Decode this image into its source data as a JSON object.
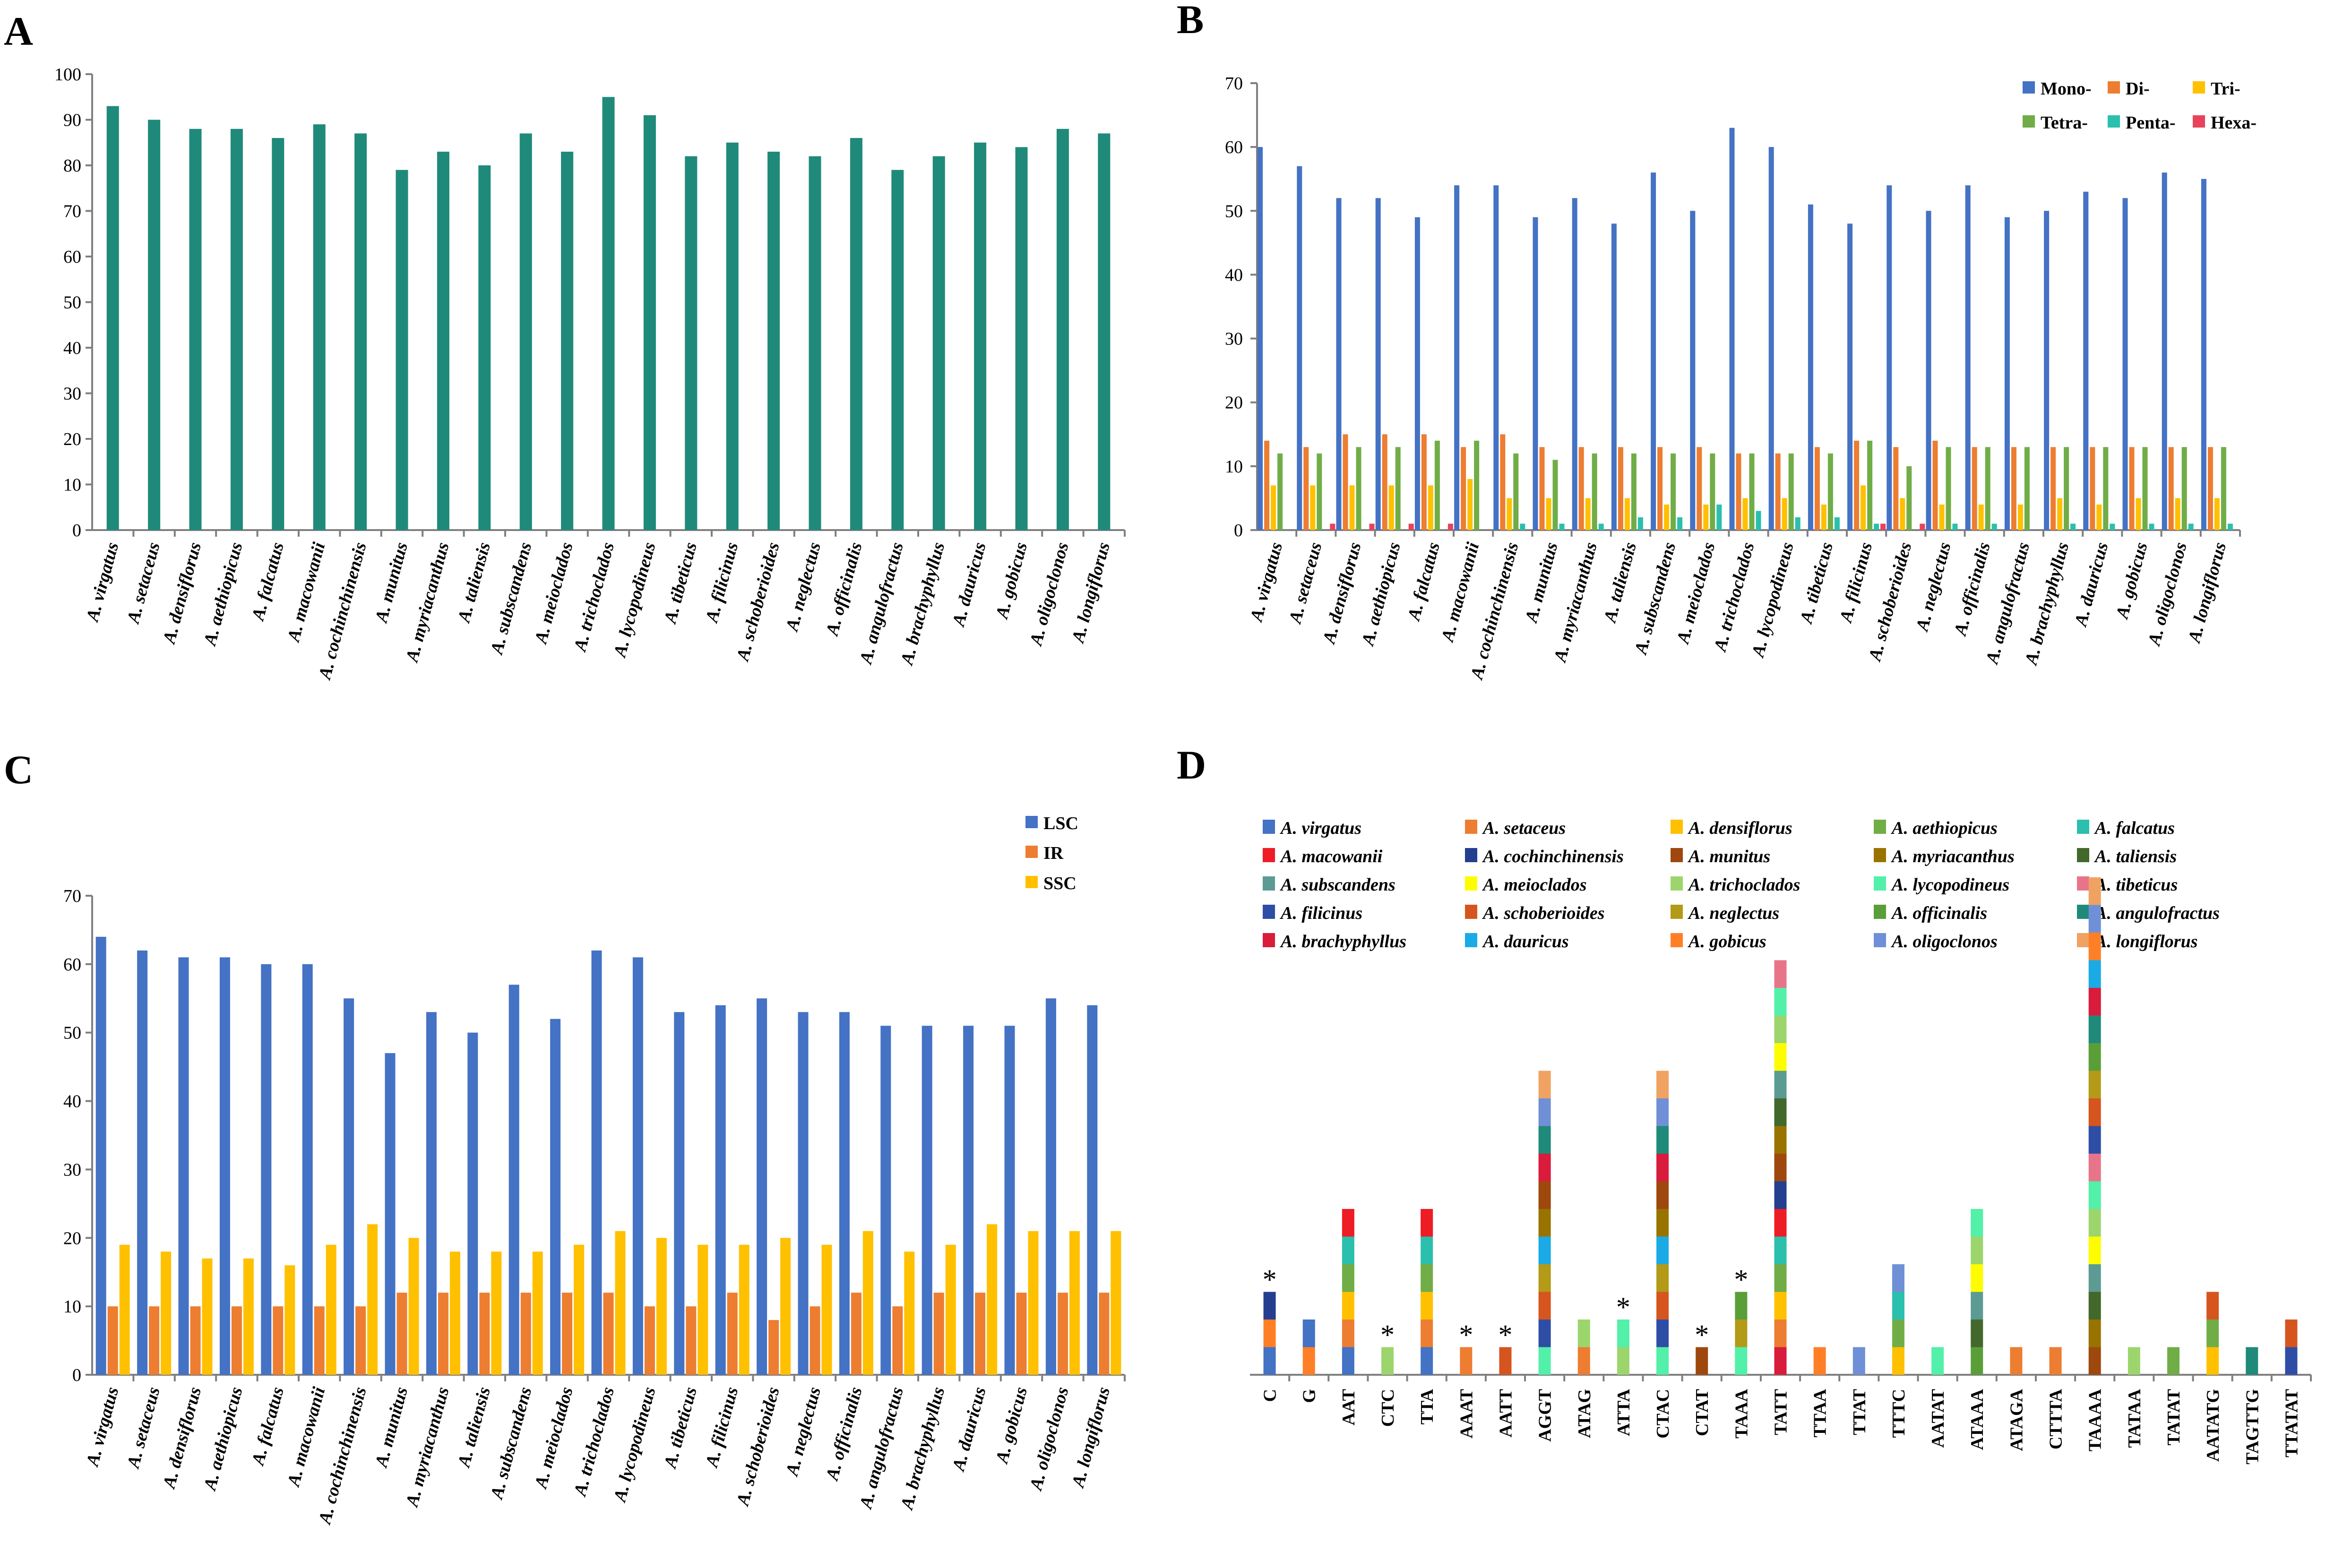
{
  "species": [
    "A. virgatus",
    "A. setaceus",
    "A. densiflorus",
    "A. aethiopicus",
    "A. falcatus",
    "A. macowanii",
    "A. cochinchinensis",
    "A. munitus",
    "A. myriacanthus",
    "A. taliensis",
    "A. subscandens",
    "A. meioclados",
    "A. trichoclados",
    "A. lycopodineus",
    "A. tibeticus",
    "A. filicinus",
    "A. schoberioides",
    "A. neglectus",
    "A. officinalis",
    "A. angulofractus",
    "A. brachyphyllus",
    "A. dauricus",
    "A. gobicus",
    "A. oligoclonos",
    "A. longiflorus"
  ],
  "chart_data": [
    {
      "panel": "A",
      "type": "bar",
      "categories": [
        "A. virgatus",
        "A. setaceus",
        "A. densiflorus",
        "A. aethiopicus",
        "A. falcatus",
        "A. macowanii",
        "A. cochinchinensis",
        "A. munitus",
        "A. myriacanthus",
        "A. taliensis",
        "A. subscandens",
        "A. meioclados",
        "A. trichoclados",
        "A. lycopodineus",
        "A. tibeticus",
        "A. filicinus",
        "A. schoberioides",
        "A. neglectus",
        "A. officinalis",
        "A. angulofractus",
        "A. brachyphyllus",
        "A. dauricus",
        "A. gobicus",
        "A. oligoclonos",
        "A. longiflorus"
      ],
      "series": [
        {
          "name": "",
          "color": "#1f8a7a",
          "values": [
            93,
            90,
            88,
            88,
            86,
            89,
            87,
            79,
            83,
            80,
            87,
            83,
            95,
            91,
            82,
            85,
            83,
            82,
            86,
            79,
            82,
            85,
            84,
            88,
            87
          ]
        }
      ],
      "ylim": [
        0,
        100
      ],
      "yticks": [
        0,
        10,
        20,
        30,
        40,
        50,
        60,
        70,
        80,
        90,
        100
      ],
      "legend": "none"
    },
    {
      "panel": "B",
      "type": "bar",
      "categories": [
        "A. virgatus",
        "A. setaceus",
        "A. densiflorus",
        "A. aethiopicus",
        "A. falcatus",
        "A. macowanii",
        "A. cochinchinensis",
        "A. munitus",
        "A. myriacanthus",
        "A. taliensis",
        "A. subscandens",
        "A. meioclados",
        "A. trichoclados",
        "A. lycopodineus",
        "A. tibeticus",
        "A. filicinus",
        "A. schoberioides",
        "A. neglectus",
        "A. officinalis",
        "A. angulofractus",
        "A. brachyphyllus",
        "A. dauricus",
        "A. gobicus",
        "A. oligoclonos",
        "A. longiflorus"
      ],
      "series": [
        {
          "name": "Mono-",
          "color": "#4472c4",
          "values": [
            60,
            57,
            52,
            52,
            49,
            54,
            54,
            49,
            52,
            48,
            56,
            50,
            63,
            60,
            51,
            48,
            54,
            50,
            54,
            49,
            50,
            53,
            52,
            56,
            55
          ]
        },
        {
          "name": "Di-",
          "color": "#ed7d31",
          "values": [
            14,
            13,
            15,
            15,
            15,
            13,
            15,
            13,
            13,
            13,
            13,
            13,
            12,
            12,
            13,
            14,
            13,
            14,
            13,
            13,
            13,
            13,
            13,
            13,
            13
          ]
        },
        {
          "name": "Tri-",
          "color": "#ffc000",
          "values": [
            7,
            7,
            7,
            7,
            7,
            8,
            5,
            5,
            5,
            5,
            4,
            4,
            5,
            5,
            4,
            7,
            5,
            4,
            4,
            4,
            5,
            4,
            5,
            5,
            5
          ]
        },
        {
          "name": "Tetra-",
          "color": "#70ad47",
          "values": [
            12,
            12,
            13,
            13,
            14,
            14,
            12,
            11,
            12,
            12,
            12,
            12,
            12,
            12,
            12,
            14,
            10,
            13,
            13,
            13,
            13,
            13,
            13,
            13,
            13
          ]
        },
        {
          "name": "Penta-",
          "color": "#2bbfad",
          "values": [
            0,
            0,
            0,
            0,
            0,
            0,
            1,
            1,
            1,
            2,
            2,
            4,
            3,
            2,
            2,
            1,
            0,
            1,
            1,
            0,
            1,
            1,
            1,
            1,
            1
          ]
        },
        {
          "name": "Hexa-",
          "color": "#e8435a",
          "values": [
            0,
            1,
            1,
            1,
            1,
            0,
            0,
            0,
            0,
            0,
            0,
            0,
            0,
            0,
            0,
            1,
            1,
            0,
            0,
            0,
            0,
            0,
            0,
            0,
            0
          ]
        }
      ],
      "ylim": [
        0,
        70
      ],
      "yticks": [
        0,
        10,
        20,
        30,
        40,
        50,
        60,
        70
      ],
      "legend": "top-right"
    },
    {
      "panel": "C",
      "type": "bar",
      "categories": [
        "A. virgatus",
        "A. setaceus",
        "A. densiflorus",
        "A. aethiopicus",
        "A. falcatus",
        "A. macowanii",
        "A. cochinchinensis",
        "A. munitus",
        "A. myriacanthus",
        "A. taliensis",
        "A. subscandens",
        "A. meioclados",
        "A. trichoclados",
        "A. lycopodineus",
        "A. tibeticus",
        "A. filicinus",
        "A. schoberioides",
        "A. neglectus",
        "A. officinalis",
        "A. angulofractus",
        "A. brachyphyllus",
        "A. dauricus",
        "A. gobicus",
        "A. oligoclonos",
        "A. longiflorus"
      ],
      "series": [
        {
          "name": "LSC",
          "color": "#4472c4",
          "values": [
            64,
            62,
            61,
            61,
            60,
            60,
            55,
            47,
            53,
            50,
            57,
            52,
            62,
            61,
            53,
            54,
            55,
            53,
            53,
            51,
            51,
            51,
            51,
            55,
            54
          ]
        },
        {
          "name": "IR",
          "color": "#ed7d31",
          "values": [
            10,
            10,
            10,
            10,
            10,
            10,
            10,
            12,
            12,
            12,
            12,
            12,
            12,
            10,
            10,
            12,
            8,
            10,
            12,
            10,
            12,
            12,
            12,
            12,
            12
          ]
        },
        {
          "name": "SSC",
          "color": "#ffc000",
          "values": [
            19,
            18,
            17,
            17,
            16,
            19,
            22,
            20,
            18,
            18,
            18,
            19,
            21,
            20,
            19,
            19,
            20,
            19,
            21,
            18,
            19,
            22,
            21,
            21,
            21
          ]
        }
      ],
      "ylim": [
        0,
        70
      ],
      "yticks": [
        0,
        10,
        20,
        30,
        40,
        50,
        60,
        70
      ],
      "legend": "top-right"
    },
    {
      "panel": "D",
      "type": "bar",
      "stacked": true,
      "categories": [
        "C",
        "G",
        "AAT",
        "CTC",
        "TTA",
        "AAAT",
        "AATT",
        "AGGT",
        "ATAG",
        "ATTA",
        "CTAC",
        "CTAT",
        "TAAA",
        "TATT",
        "TTAA",
        "TTAT",
        "TTTC",
        "AATAT",
        "ATAAA",
        "ATAGA",
        "CTTTA",
        "TAAAA",
        "TATAA",
        "TATAT",
        "AATATG",
        "TAGTTG",
        "TTATAT"
      ],
      "stacks": [
        [
          0,
          22,
          6
        ],
        [
          22,
          0
        ],
        [
          0,
          1,
          2,
          3,
          4,
          5
        ],
        [
          12
        ],
        [
          0,
          1,
          2,
          3,
          4,
          5
        ],
        [
          1
        ],
        [
          16
        ],
        [
          13,
          15,
          16,
          17,
          21,
          8,
          7,
          20,
          19,
          23,
          24
        ],
        [
          1,
          12
        ],
        [
          12,
          13
        ],
        [
          13,
          15,
          16,
          17,
          21,
          8,
          7,
          20,
          19,
          23,
          24
        ],
        [
          7
        ],
        [
          13,
          17,
          18
        ],
        [
          20,
          1,
          2,
          3,
          4,
          5,
          6,
          7,
          8,
          9,
          10,
          11,
          12,
          13,
          14
        ],
        [
          22
        ],
        [
          23
        ],
        [
          2,
          3,
          4,
          23
        ],
        [
          13
        ],
        [
          18,
          9,
          10,
          11,
          12,
          13
        ],
        [
          1
        ],
        [
          1
        ],
        [
          7,
          8,
          9,
          10,
          11,
          12,
          13,
          14,
          15,
          16,
          17,
          18,
          19,
          20,
          21,
          22,
          23,
          24
        ],
        [
          12
        ],
        [
          3
        ],
        [
          2,
          3,
          16
        ],
        [
          19
        ],
        [
          15,
          16
        ]
      ],
      "asterisks": [
        "C",
        "CTC",
        "AAAT",
        "AATT",
        "ATTA",
        "CTAT",
        "TAAA"
      ],
      "legend": "top",
      "colors": [
        "#4472c4",
        "#ed7d31",
        "#ffc000",
        "#70ad47",
        "#2bbfad",
        "#ee1c25",
        "#243f8f",
        "#9e480e",
        "#997300",
        "#43682b",
        "#5b9b93",
        "#fdfd00",
        "#9dd56d",
        "#52f0a8",
        "#e8748a",
        "#2e4ea6",
        "#d6551f",
        "#b39a17",
        "#5a9e38",
        "#1f8a7a",
        "#d91b3c",
        "#1aabe6",
        "#ff7f27",
        "#6f90d6",
        "#f0a262"
      ]
    }
  ]
}
